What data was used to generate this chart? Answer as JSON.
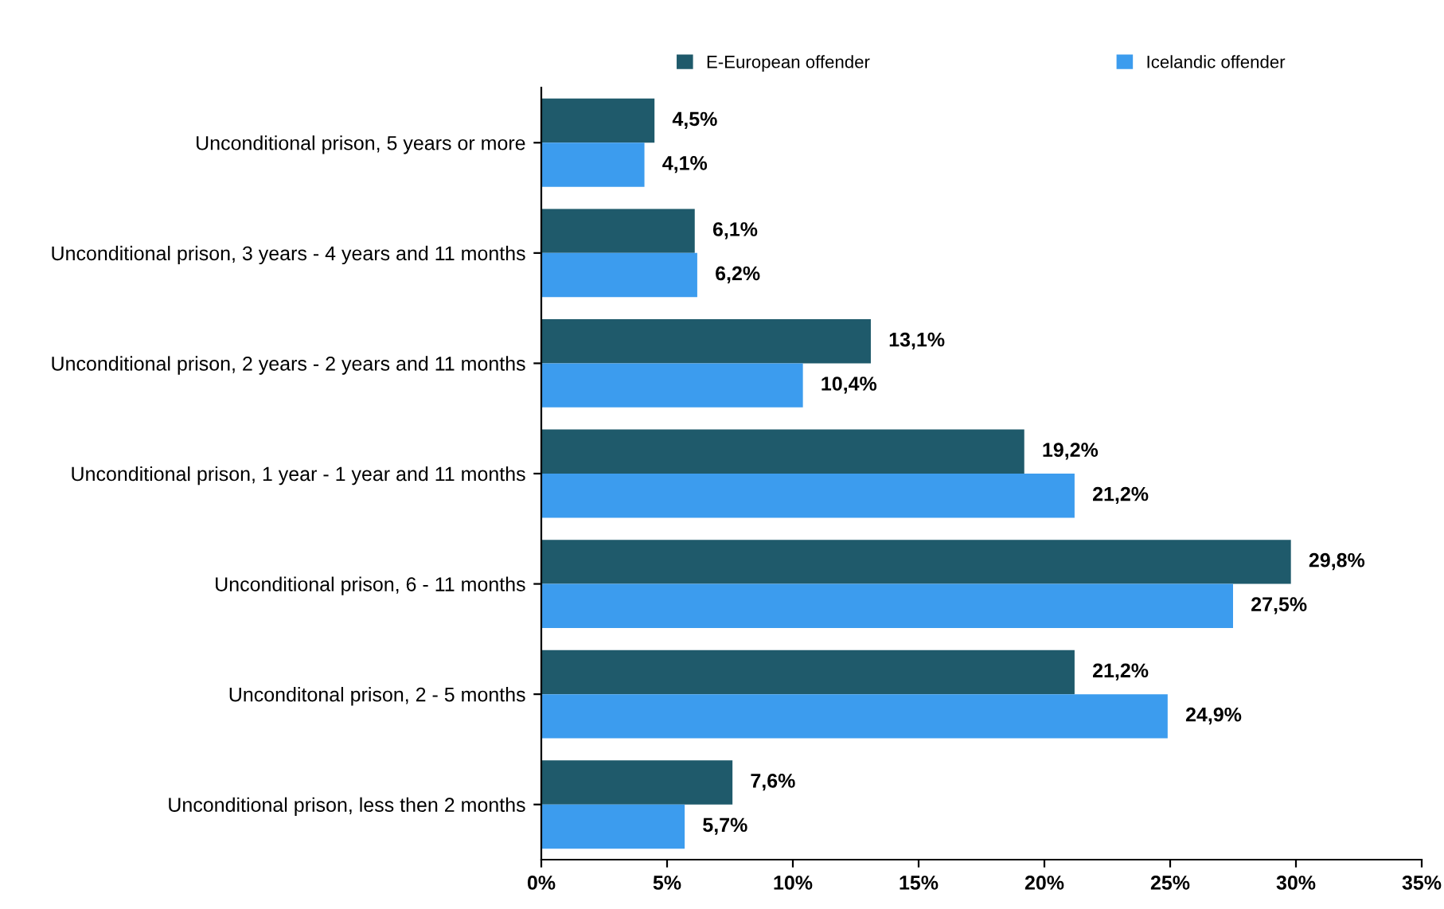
{
  "chart_data": {
    "type": "bar",
    "orientation": "horizontal",
    "categories": [
      "Unconditional prison, 5 years or more",
      "Unconditional prison, 3 years - 4 years and 11 months",
      "Unconditional prison, 2 years - 2 years and 11 months",
      "Unconditional prison, 1 year - 1 year and 11 months",
      "Unconditional prison, 6 - 11 months",
      "Unconditonal prison, 2 - 5 months",
      "Unconditional prison, less then 2 months"
    ],
    "series": [
      {
        "name": "E-European offender",
        "color": "#1f5a6b",
        "values": [
          4.5,
          6.1,
          13.1,
          19.2,
          29.8,
          21.2,
          7.6
        ],
        "value_labels": [
          "4,5%",
          "6,1%",
          "13,1%",
          "19,2%",
          "29,8%",
          "21,2%",
          "7,6%"
        ]
      },
      {
        "name": "Icelandic offender",
        "color": "#3c9cee",
        "values": [
          4.1,
          6.2,
          10.4,
          21.2,
          27.5,
          24.9,
          5.7
        ],
        "value_labels": [
          "4,1%",
          "6,2%",
          "10,4%",
          "21,2%",
          "27,5%",
          "24,9%",
          "5,7%"
        ]
      }
    ],
    "xlim": [
      0,
      35
    ],
    "xticks": [
      {
        "value": 0,
        "label": "0%"
      },
      {
        "value": 5,
        "label": "5%"
      },
      {
        "value": 10,
        "label": "10%"
      },
      {
        "value": 15,
        "label": "15%"
      },
      {
        "value": 20,
        "label": "20%"
      },
      {
        "value": 25,
        "label": "25%"
      },
      {
        "value": 30,
        "label": "30%"
      },
      {
        "value": 35,
        "label": "35%"
      }
    ],
    "grid": false,
    "legend": "top"
  }
}
